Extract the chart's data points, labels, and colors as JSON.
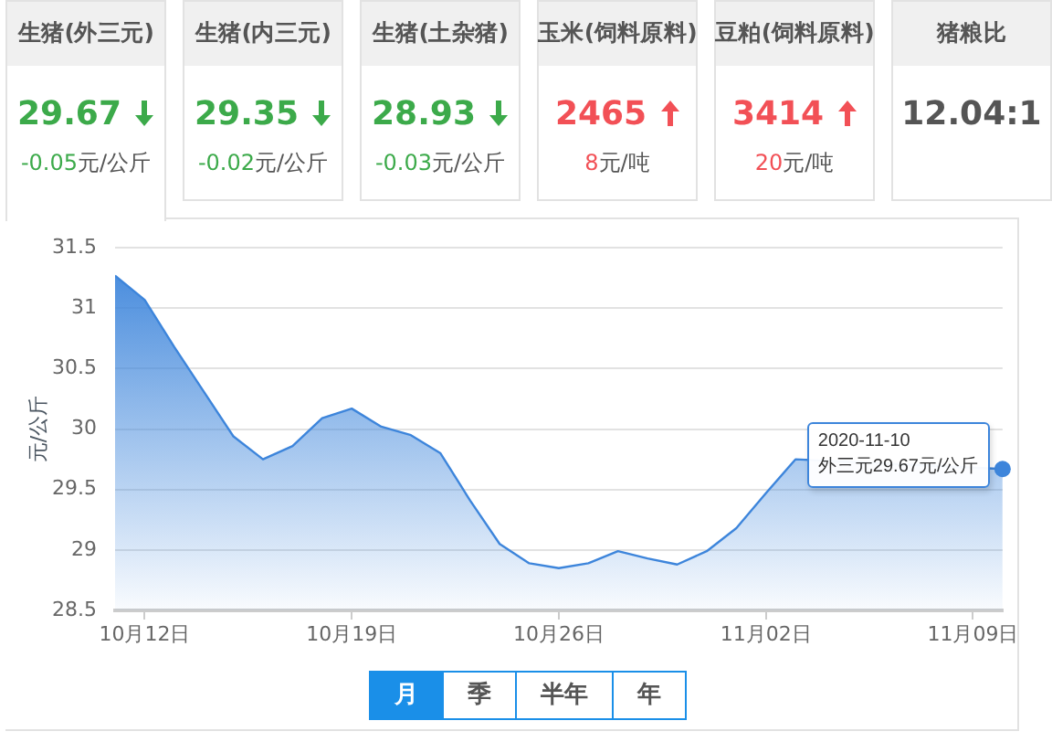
{
  "chart_data": [
    {
      "type": "other",
      "categories": [
        "生猪(外三元)",
        "生猪(内三元)",
        "生猪(土杂猪)",
        "玉米(饲料原料)",
        "豆粕(饲料原料)",
        "猪粮比"
      ],
      "series": [
        {
          "values": [
            29.67,
            29.35,
            28.93,
            2465,
            3414,
            12.04
          ],
          "value_labels": [
            "29.67",
            "29.35",
            "28.93",
            "2465",
            "3414",
            "12.04:1"
          ]
        },
        {
          "values": [
            -0.05,
            -0.02,
            -0.03,
            8,
            20,
            null
          ],
          "value_labels": [
            "-0.05元/公斤",
            "-0.02元/公斤",
            "-0.03元/公斤",
            "8元/吨",
            "20元/吨",
            null
          ]
        }
      ]
    },
    {
      "type": "area",
      "ylabel": "元/公斤",
      "x": [
        "2020-10-11",
        "2020-10-12",
        "2020-10-13",
        "2020-10-14",
        "2020-10-15",
        "2020-10-16",
        "2020-10-17",
        "2020-10-18",
        "2020-10-19",
        "2020-10-20",
        "2020-10-21",
        "2020-10-22",
        "2020-10-23",
        "2020-10-24",
        "2020-10-25",
        "2020-10-26",
        "2020-10-27",
        "2020-10-28",
        "2020-10-29",
        "2020-10-30",
        "2020-10-31",
        "2020-11-01",
        "2020-11-02",
        "2020-11-03",
        "2020-11-04",
        "2020-11-05",
        "2020-11-06",
        "2020-11-07",
        "2020-11-08",
        "2020-11-09",
        "2020-11-10"
      ],
      "values": [
        31.27,
        31.07,
        30.68,
        30.31,
        29.94,
        29.75,
        29.86,
        30.09,
        30.17,
        30.02,
        29.95,
        29.8,
        29.41,
        29.05,
        28.89,
        28.85,
        28.89,
        28.99,
        28.93,
        28.88,
        28.99,
        29.18,
        29.47,
        29.75,
        null,
        null,
        null,
        null,
        null,
        null,
        29.67
      ],
      "color": "#3d85db",
      "xlim": [
        "2020-10-11",
        "2020-11-10"
      ],
      "xticks": [
        {
          "value": "2020-10-12",
          "label": "10月12日"
        },
        {
          "value": "2020-10-19",
          "label": "10月19日"
        },
        {
          "value": "2020-10-26",
          "label": "10月26日"
        },
        {
          "value": "2020-11-02",
          "label": "11月02日"
        },
        {
          "value": "2020-11-09",
          "label": "11月09日"
        }
      ],
      "ylim": [
        28.5,
        31.5
      ],
      "yticks": [
        28.5,
        29,
        29.5,
        30,
        30.5,
        31,
        31.5
      ],
      "grid": "y",
      "annotations": [
        {
          "text": "2020-11-10\n外三元29.67元/公斤",
          "x": "2020-11-10",
          "y": 29.67
        }
      ]
    },
    {
      "type": "other",
      "categories": [
        "月",
        "季",
        "半年",
        "年"
      ]
    }
  ]
}
